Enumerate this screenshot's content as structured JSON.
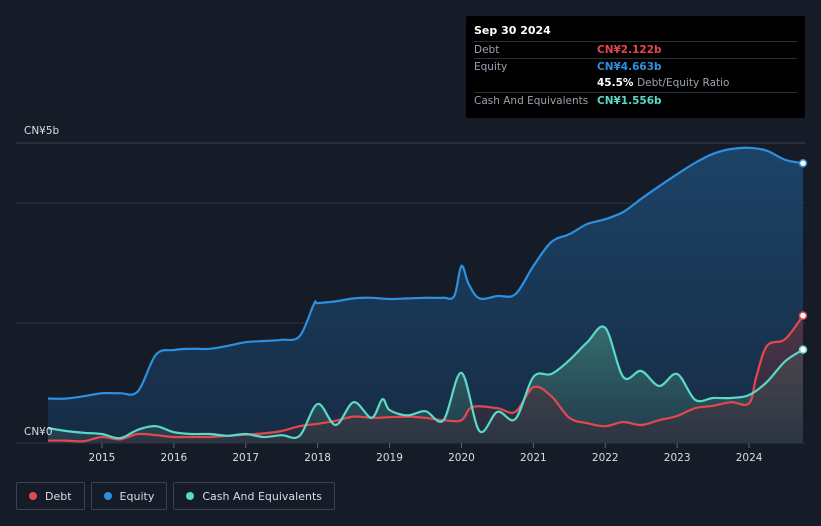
{
  "tooltip": {
    "date": "Sep 30 2024",
    "rows": [
      {
        "label": "Debt",
        "value": "CN¥2.122b",
        "color": "#e5474f"
      },
      {
        "label": "Equity",
        "value": "CN¥4.663b",
        "color": "#2d8fe0"
      },
      {
        "label": "",
        "value": "45.5%",
        "sub": "Debt/Equity Ratio",
        "color": "#ffffff"
      },
      {
        "label": "Cash And Equivalents",
        "value": "CN¥1.556b",
        "color": "#5ad8c8"
      }
    ]
  },
  "legend": [
    {
      "label": "Debt",
      "color": "#e5474f"
    },
    {
      "label": "Equity",
      "color": "#2d8fe0"
    },
    {
      "label": "Cash And Equivalents",
      "color": "#5ad8c8"
    }
  ],
  "chart_data": {
    "type": "area",
    "ylabel_top": "CN¥5b",
    "ylabel_bottom": "CN¥0",
    "ylim": [
      0,
      5
    ],
    "xlim": [
      2014.25,
      2024.75
    ],
    "x_ticks": [
      "2015",
      "2016",
      "2017",
      "2018",
      "2019",
      "2020",
      "2021",
      "2022",
      "2023",
      "2024"
    ],
    "grid": true,
    "series": [
      {
        "name": "Equity",
        "color": "#2d8fe0",
        "x": [
          2014.25,
          2014.5,
          2014.75,
          2015.0,
          2015.25,
          2015.5,
          2015.75,
          2016.0,
          2016.25,
          2016.5,
          2016.75,
          2017.0,
          2017.25,
          2017.5,
          2017.75,
          2017.95,
          2018.0,
          2018.25,
          2018.5,
          2018.75,
          2019.0,
          2019.25,
          2019.5,
          2019.75,
          2019.9,
          2020.0,
          2020.1,
          2020.25,
          2020.5,
          2020.75,
          2021.0,
          2021.25,
          2021.5,
          2021.75,
          2022.0,
          2022.25,
          2022.5,
          2022.75,
          2023.0,
          2023.25,
          2023.5,
          2023.75,
          2024.0,
          2024.25,
          2024.5,
          2024.75
        ],
        "values": [
          0.74,
          0.74,
          0.78,
          0.83,
          0.83,
          0.86,
          1.47,
          1.55,
          1.57,
          1.57,
          1.62,
          1.68,
          1.7,
          1.72,
          1.78,
          2.32,
          2.33,
          2.36,
          2.41,
          2.42,
          2.4,
          2.41,
          2.42,
          2.42,
          2.45,
          2.95,
          2.65,
          2.41,
          2.45,
          2.48,
          2.95,
          3.35,
          3.48,
          3.65,
          3.73,
          3.85,
          4.07,
          4.28,
          4.48,
          4.67,
          4.82,
          4.9,
          4.92,
          4.87,
          4.72,
          4.663
        ]
      },
      {
        "name": "Debt",
        "color": "#e5474f",
        "x": [
          2014.25,
          2014.5,
          2014.75,
          2015.0,
          2015.25,
          2015.5,
          2015.75,
          2016.0,
          2016.25,
          2016.5,
          2016.75,
          2017.0,
          2017.25,
          2017.5,
          2017.75,
          2018.0,
          2018.25,
          2018.5,
          2018.75,
          2019.0,
          2019.25,
          2019.5,
          2019.75,
          2020.0,
          2020.15,
          2020.5,
          2020.75,
          2021.0,
          2021.25,
          2021.5,
          2021.75,
          2022.0,
          2022.25,
          2022.5,
          2022.75,
          2023.0,
          2023.25,
          2023.5,
          2023.75,
          2024.0,
          2024.1,
          2024.25,
          2024.5,
          2024.75
        ],
        "values": [
          0.04,
          0.04,
          0.03,
          0.1,
          0.06,
          0.15,
          0.13,
          0.1,
          0.1,
          0.1,
          0.12,
          0.14,
          0.16,
          0.2,
          0.28,
          0.32,
          0.37,
          0.44,
          0.42,
          0.43,
          0.44,
          0.42,
          0.38,
          0.38,
          0.6,
          0.58,
          0.52,
          0.93,
          0.78,
          0.42,
          0.33,
          0.28,
          0.35,
          0.3,
          0.38,
          0.45,
          0.58,
          0.62,
          0.68,
          0.66,
          1.1,
          1.62,
          1.73,
          2.122
        ]
      },
      {
        "name": "Cash And Equivalents",
        "color": "#5ad8c8",
        "x": [
          2014.25,
          2014.5,
          2014.75,
          2015.0,
          2015.25,
          2015.5,
          2015.75,
          2016.0,
          2016.25,
          2016.5,
          2016.75,
          2017.0,
          2017.25,
          2017.5,
          2017.75,
          2018.0,
          2018.25,
          2018.5,
          2018.75,
          2018.9,
          2019.0,
          2019.25,
          2019.5,
          2019.75,
          2020.0,
          2020.25,
          2020.5,
          2020.75,
          2021.0,
          2021.25,
          2021.5,
          2021.75,
          2022.0,
          2022.25,
          2022.5,
          2022.75,
          2023.0,
          2023.25,
          2023.5,
          2023.75,
          2024.0,
          2024.25,
          2024.5,
          2024.75
        ],
        "values": [
          0.25,
          0.2,
          0.17,
          0.15,
          0.08,
          0.22,
          0.28,
          0.18,
          0.15,
          0.15,
          0.12,
          0.15,
          0.1,
          0.13,
          0.12,
          0.65,
          0.3,
          0.68,
          0.42,
          0.73,
          0.55,
          0.46,
          0.53,
          0.38,
          1.17,
          0.2,
          0.52,
          0.4,
          1.1,
          1.15,
          1.38,
          1.68,
          1.92,
          1.1,
          1.2,
          0.95,
          1.15,
          0.72,
          0.75,
          0.75,
          0.8,
          1.02,
          1.36,
          1.556
        ]
      }
    ]
  }
}
